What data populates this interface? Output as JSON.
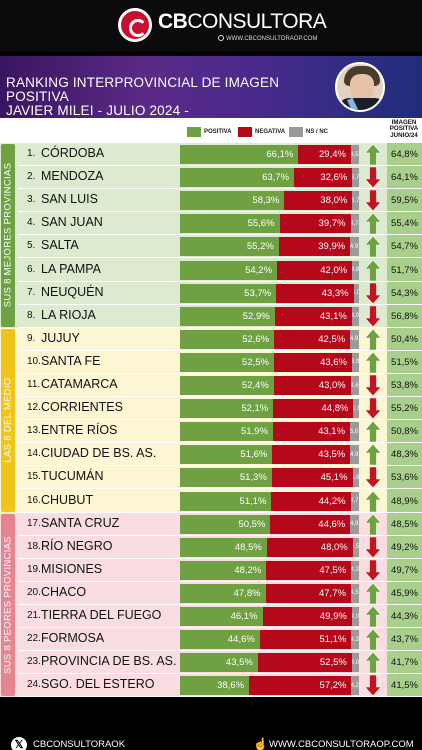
{
  "brand": {
    "name_bold": "CB",
    "name_light": "CONSULTORA",
    "url": "WWW.CBCONSULTORAOP.COM"
  },
  "banner": {
    "title_line1": "RANKING INTERPROVINCIAL DE IMAGEN POSITIVA",
    "title_line2": "JAVIER MILEI - JULIO  2024 -"
  },
  "legend": {
    "positive": "POSITIVA",
    "negative": "NEGATIVA",
    "ns": "NS / NC"
  },
  "junio_header": [
    "IMAGEN",
    "POSITIVA",
    "JUNIO/24"
  ],
  "bands": [
    {
      "label": "SUS 8 MEJORES PROVINCIAS",
      "color": "#6fa142",
      "bg": "#dcebd0"
    },
    {
      "label": "LAS 8 DEL MEDIO",
      "color": "#f0c419",
      "bg": "#fdf6d2"
    },
    {
      "label": "SUS 8 PEORES PROVINCIAS",
      "color": "#e58591",
      "bg": "#f9dde0"
    }
  ],
  "colors": {
    "positive": "#6fa142",
    "negative": "#b5081a",
    "ns": "#9a9a9a",
    "arrow_up": "#6fa142",
    "arrow_down": "#c3141f"
  },
  "chart_data": {
    "type": "bar",
    "stacked": true,
    "orientation": "horizontal",
    "title": "RANKING INTERPROVINCIAL DE IMAGEN POSITIVA JAVIER MILEI - JULIO  2024 -",
    "series_names": [
      "POSITIVA",
      "NEGATIVA",
      "NS / NC"
    ],
    "rows": [
      {
        "rank": "1.",
        "province": "CÓRDOBA",
        "pos": "66,1%",
        "neg": "29,4%",
        "ns": "4,5",
        "p": 66.1,
        "n": 29.4,
        "s": 4.5,
        "trend": "up",
        "junio": "64,8%"
      },
      {
        "rank": "2.",
        "province": "MENDOZA",
        "pos": "63,7%",
        "neg": "32,6%",
        "ns": "3,7",
        "p": 63.7,
        "n": 32.6,
        "s": 3.7,
        "trend": "down",
        "junio": "64,1%"
      },
      {
        "rank": "3.",
        "province": "SAN LUIS",
        "pos": "58,3%",
        "neg": "38,0%",
        "ns": "3,7",
        "p": 58.3,
        "n": 38.0,
        "s": 3.7,
        "trend": "down",
        "junio": "59,5%"
      },
      {
        "rank": "4.",
        "province": "SAN JUAN",
        "pos": "55,6%",
        "neg": "39,7%",
        "ns": "4,7",
        "p": 55.6,
        "n": 39.7,
        "s": 4.7,
        "trend": "up",
        "junio": "55,4%"
      },
      {
        "rank": "5.",
        "province": "SALTA",
        "pos": "55,2%",
        "neg": "39,9%",
        "ns": "4,9",
        "p": 55.2,
        "n": 39.9,
        "s": 4.9,
        "trend": "up",
        "junio": "54,7%"
      },
      {
        "rank": "6.",
        "province": "LA PAMPA",
        "pos": "54,2%",
        "neg": "42,0%",
        "ns": "3,8",
        "p": 54.2,
        "n": 42.0,
        "s": 3.8,
        "trend": "up",
        "junio": "51,7%"
      },
      {
        "rank": "7.",
        "province": "NEUQUÉN",
        "pos": "53,7%",
        "neg": "43,3%",
        "ns": "3,0",
        "p": 53.7,
        "n": 43.3,
        "s": 3.0,
        "trend": "down",
        "junio": "54,3%"
      },
      {
        "rank": "8.",
        "province": "LA RIOJA",
        "pos": "52,9%",
        "neg": "43,1%",
        "ns": "4,0",
        "p": 52.9,
        "n": 43.1,
        "s": 4.0,
        "trend": "down",
        "junio": "56,8%"
      },
      {
        "rank": "9.",
        "province": "JUJUY",
        "pos": "52,6%",
        "neg": "42,5%",
        "ns": "4,9",
        "p": 52.6,
        "n": 42.5,
        "s": 4.9,
        "trend": "up",
        "junio": "50,4%"
      },
      {
        "rank": "10.",
        "province": "SANTA FE",
        "pos": "52,5%",
        "neg": "43,6%",
        "ns": "3,9",
        "p": 52.5,
        "n": 43.6,
        "s": 3.9,
        "trend": "up",
        "junio": "51,5%"
      },
      {
        "rank": "11.",
        "province": "CATAMARCA",
        "pos": "52,4%",
        "neg": "43,0%",
        "ns": "4,6",
        "p": 52.4,
        "n": 43.0,
        "s": 4.6,
        "trend": "down",
        "junio": "53,8%"
      },
      {
        "rank": "12.",
        "province": "CORRIENTES",
        "pos": "52,1%",
        "neg": "44,8%",
        "ns": "3,1",
        "p": 52.1,
        "n": 44.8,
        "s": 3.1,
        "trend": "down",
        "junio": "55,2%"
      },
      {
        "rank": "13.",
        "province": "ENTRE RÍOS",
        "pos": "51,9%",
        "neg": "43,1%",
        "ns": "5,0",
        "p": 51.9,
        "n": 43.1,
        "s": 5.0,
        "trend": "up",
        "junio": "50,8%"
      },
      {
        "rank": "14.",
        "province": "CIUDAD DE BS. AS.",
        "pos": "51,6%",
        "neg": "43,5%",
        "ns": "4,9",
        "p": 51.6,
        "n": 43.5,
        "s": 4.9,
        "trend": "up",
        "junio": "48,3%"
      },
      {
        "rank": "15.",
        "province": "TUCUMÁN",
        "pos": "51,3%",
        "neg": "45,1%",
        "ns": "3,6",
        "p": 51.3,
        "n": 45.1,
        "s": 3.6,
        "trend": "down",
        "junio": "53,6%"
      },
      {
        "rank": "16.",
        "province": "CHUBUT",
        "pos": "51,1%",
        "neg": "44,2%",
        "ns": "4,7",
        "p": 51.1,
        "n": 44.2,
        "s": 4.7,
        "trend": "up",
        "junio": "48,9%"
      },
      {
        "rank": "17.",
        "province": "SANTA CRUZ",
        "pos": "50,5%",
        "neg": "44,6%",
        "ns": "4,9",
        "p": 50.5,
        "n": 44.6,
        "s": 4.9,
        "trend": "up",
        "junio": "48,5%"
      },
      {
        "rank": "18.",
        "province": "RÍO NEGRO",
        "pos": "48,5%",
        "neg": "48,0%",
        "ns": "3,5",
        "p": 48.5,
        "n": 48.0,
        "s": 3.5,
        "trend": "down",
        "junio": "49,2%"
      },
      {
        "rank": "19.",
        "province": "MISIONES",
        "pos": "48,2%",
        "neg": "47,5%",
        "ns": "4,3",
        "p": 48.2,
        "n": 47.5,
        "s": 4.3,
        "trend": "down",
        "junio": "49,7%"
      },
      {
        "rank": "20.",
        "province": "CHACO",
        "pos": "47,8%",
        "neg": "47,7%",
        "ns": "4,5",
        "p": 47.8,
        "n": 47.7,
        "s": 4.5,
        "trend": "up",
        "junio": "45,9%"
      },
      {
        "rank": "21.",
        "province": "TIERRA DEL FUEGO",
        "pos": "46,1%",
        "neg": "49,9%",
        "ns": "4,0",
        "p": 46.1,
        "n": 49.9,
        "s": 4.0,
        "trend": "up",
        "junio": "44,3%"
      },
      {
        "rank": "22.",
        "province": "FORMOSA",
        "pos": "44,6%",
        "neg": "51,1%",
        "ns": "4,3",
        "p": 44.6,
        "n": 51.1,
        "s": 4.3,
        "trend": "up",
        "junio": "43,7%"
      },
      {
        "rank": "23.",
        "province": "PROVINCIA DE BS. AS.",
        "pos": "43,5%",
        "neg": "52,5%",
        "ns": "4,0",
        "p": 43.5,
        "n": 52.5,
        "s": 4.0,
        "trend": "up",
        "junio": "41,7%"
      },
      {
        "rank": "24.",
        "province": "SGO. DEL ESTERO",
        "pos": "38,6%",
        "neg": "57,2%",
        "ns": "4,2",
        "p": 38.6,
        "n": 57.2,
        "s": 4.2,
        "trend": "down",
        "junio": "41,5%"
      }
    ]
  },
  "footer": {
    "handle": "CBCONSULTORAOK",
    "url": "WWW.CBCONSULTORAOP.COM"
  }
}
